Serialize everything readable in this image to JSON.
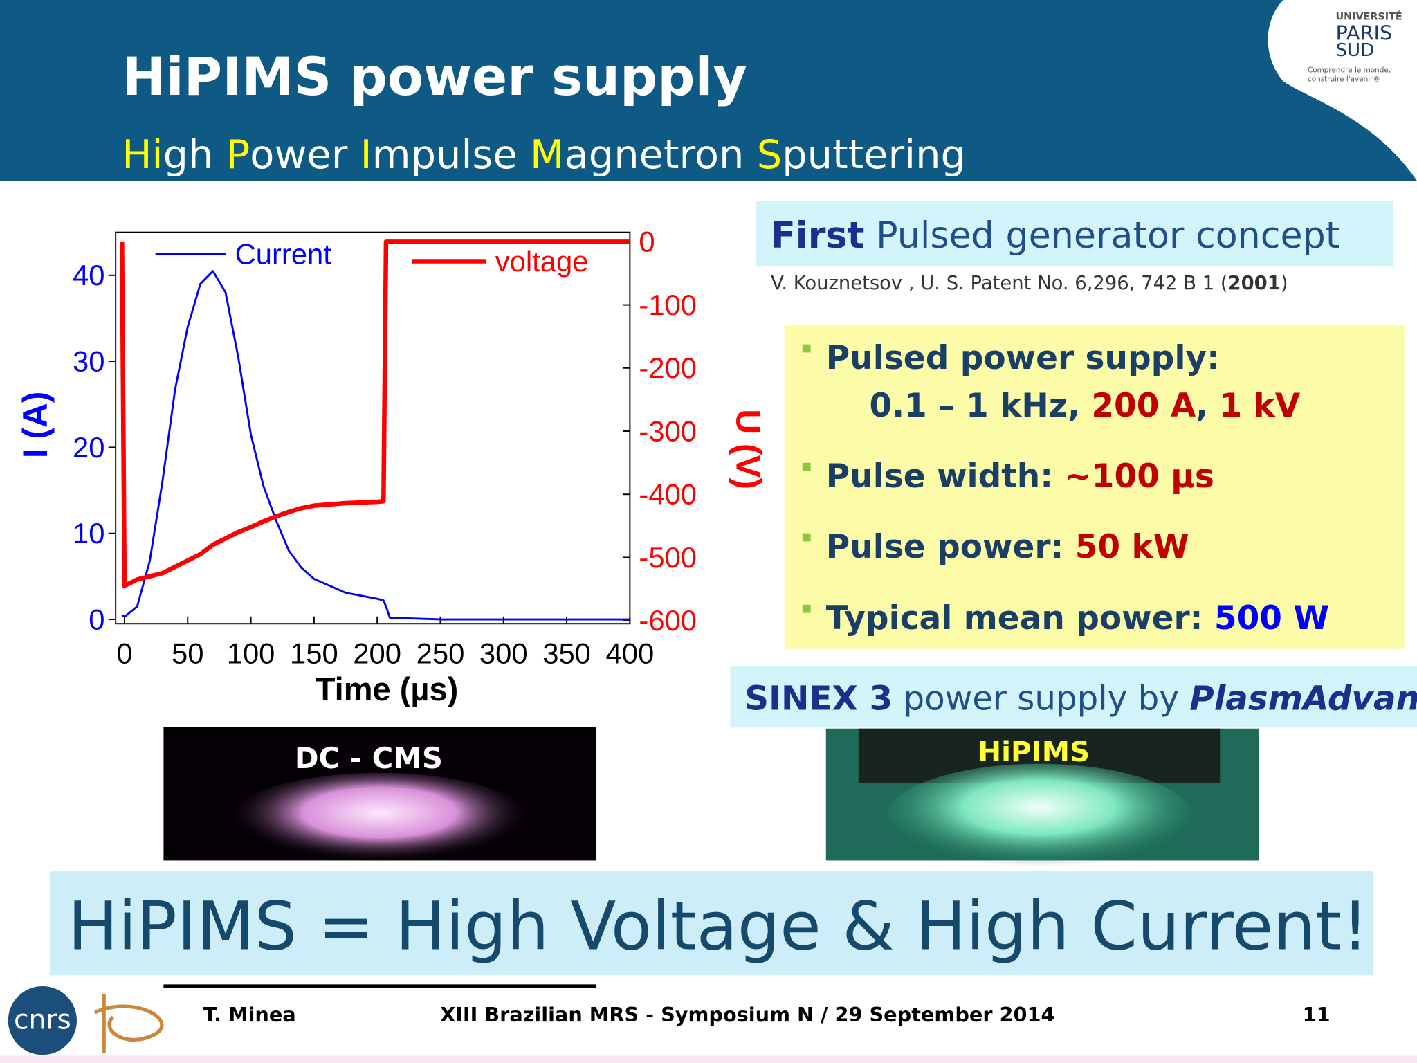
{
  "header": {
    "title": "HiPIMS power supply",
    "subtitle": [
      {
        "text": "Hi",
        "color": "#ffff00"
      },
      {
        "text": "gh ",
        "color": "#ffffff"
      },
      {
        "text": "P",
        "color": "#ffff00"
      },
      {
        "text": "ower ",
        "color": "#ffffff"
      },
      {
        "text": "I",
        "color": "#ffff00"
      },
      {
        "text": "mpulse ",
        "color": "#ffffff"
      },
      {
        "text": "M",
        "color": "#ffff00"
      },
      {
        "text": "agnetron ",
        "color": "#ffffff"
      },
      {
        "text": "S",
        "color": "#ffff00"
      },
      {
        "text": "puttering",
        "color": "#ffffff"
      }
    ]
  },
  "logo": {
    "lines": [
      "UNIVERSITÉ",
      "PARIS",
      "SUD"
    ],
    "motto": [
      "Comprendre le monde,",
      "construire l'avenir®"
    ],
    "cnrs": "cnrs"
  },
  "chart_data": {
    "type": "line",
    "x_label": "Time (µs)",
    "y_label": "I (A)",
    "y2_label": "U (V)",
    "x": [
      -2,
      0,
      10,
      20,
      30,
      40,
      50,
      60,
      70,
      80,
      90,
      100,
      110,
      120,
      130,
      140,
      150,
      175,
      200,
      205,
      207,
      210,
      250,
      300,
      350,
      400
    ],
    "series": [
      {
        "name": "Current",
        "color": "#0000ff",
        "values": [
          0.5,
          0.3,
          1.5,
          6.8,
          16,
          26.7,
          34,
          39,
          40.5,
          38,
          30.5,
          21.5,
          15.5,
          11.5,
          8,
          6,
          4.7,
          3.1,
          2.4,
          2.2,
          1.5,
          0.2,
          0,
          0,
          0,
          0
        ]
      },
      {
        "name": "voltage",
        "color": "#ff0000",
        "axis": "y2",
        "values": [
          0,
          -545,
          -535,
          -530,
          -525,
          -515,
          -505,
          -495,
          -480,
          -470,
          -460,
          -452,
          -443,
          -435,
          -428,
          -422,
          -418,
          -414,
          -412,
          -411,
          0,
          0,
          0,
          0,
          0,
          0
        ]
      }
    ],
    "xlim": [
      -7,
      400
    ],
    "xticks": [
      0,
      50,
      100,
      150,
      200,
      250,
      300,
      350,
      400
    ],
    "ylim": [
      -0.5,
      45
    ],
    "yticks": [
      0,
      10,
      20,
      30,
      40
    ],
    "y2lim": [
      -605,
      15
    ],
    "y2ticks": [
      0,
      -100,
      -200,
      -300,
      -400,
      -500,
      -600
    ]
  },
  "right_panel": {
    "concept": [
      {
        "text": "First",
        "bold": true,
        "color": "#1d2f8c"
      },
      {
        "text": " Pulsed generator concept"
      }
    ],
    "citation": [
      {
        "text": "V. Kouznetsov , U. S. Patent No. 6,296, 742 B 1 ("
      },
      {
        "text": "2001",
        "bold": true
      },
      {
        "text": ")"
      }
    ],
    "bullets": [
      {
        "lines": [
          [
            {
              "text": "Pulsed power supply:"
            }
          ],
          [
            {
              "text": "0.1 – 1 kHz, "
            },
            {
              "text": "200 A",
              "color": "#c00000"
            },
            {
              "text": ", "
            },
            {
              "text": "1 kV",
              "color": "#c00000"
            }
          ]
        ]
      },
      {
        "lines": [
          [
            {
              "text": "Pulse width: "
            },
            {
              "text": "~100 µs",
              "color": "#c00000"
            }
          ]
        ]
      },
      {
        "lines": [
          [
            {
              "text": "Pulse power: "
            },
            {
              "text": "50 kW",
              "color": "#c00000"
            }
          ]
        ]
      },
      {
        "lines": [
          [
            {
              "text": "Typical mean power: "
            },
            {
              "text": "500 W",
              "color": "#0000ff"
            }
          ]
        ]
      }
    ],
    "product": [
      {
        "text": "SINEX 3",
        "bold": true,
        "color": "#1d2f8c"
      },
      {
        "text": " power supply by "
      },
      {
        "text": "PlasmAdvance",
        "bold": true,
        "italic": true,
        "color": "#1d2f8c"
      }
    ]
  },
  "photos": [
    {
      "label": "DC - CMS"
    },
    {
      "label": "HiPIMS"
    }
  ],
  "banner": "HiPIMS = High Voltage & High Current!",
  "footer": {
    "author": "T. Minea",
    "event": "XIII Brazilian MRS - Symposium N / 29 September 2014",
    "page": "11"
  }
}
